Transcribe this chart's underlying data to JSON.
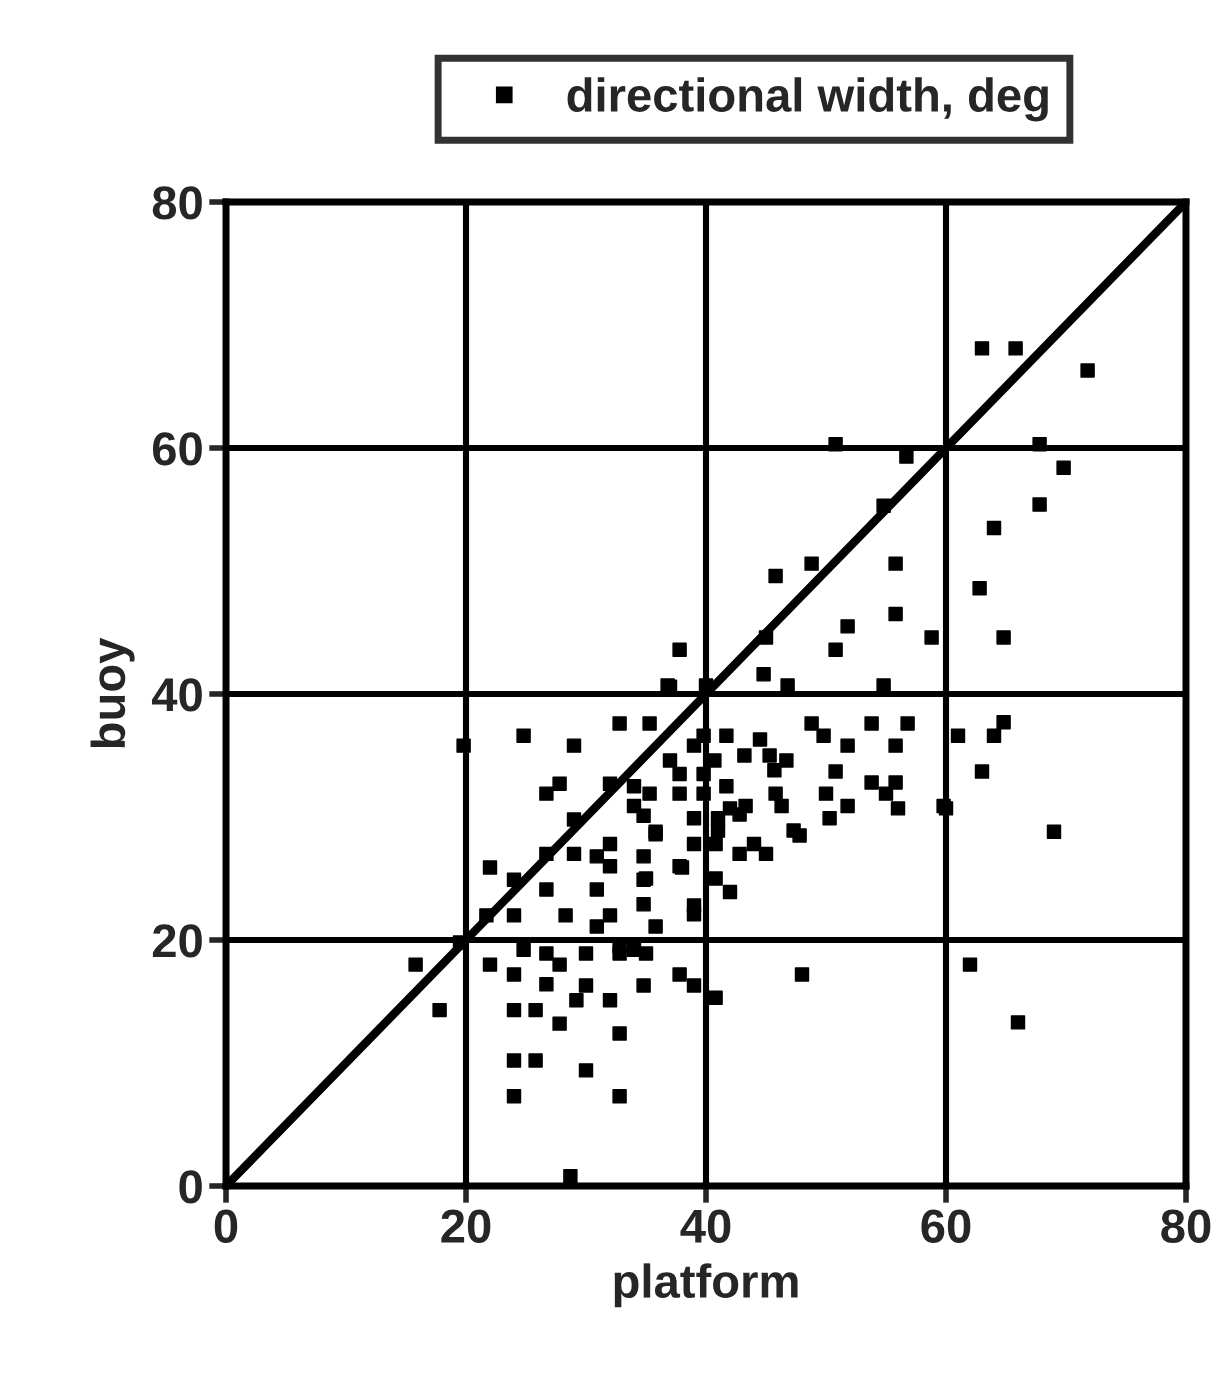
{
  "chart_data": {
    "type": "scatter",
    "xlabel": "platform",
    "ylabel": "buoy",
    "xlim": [
      0,
      80
    ],
    "ylim": [
      0,
      80
    ],
    "xticks": [
      0,
      20,
      40,
      60,
      80
    ],
    "yticks": [
      0,
      20,
      40,
      60,
      80
    ],
    "grid": true,
    "legend": "top",
    "series": [
      {
        "name": "directional width, deg",
        "color": "#000000",
        "marker": "square",
        "x": [
          63,
          65.8,
          71.8,
          67.8,
          69.8,
          50.8,
          56.7,
          54.8,
          67.8,
          64,
          62.8,
          55.8,
          48.8,
          45.8,
          64.8,
          58.8,
          55.8,
          51.8,
          50.8,
          37.8,
          45,
          44.8,
          46.8,
          54.8,
          36.8,
          40,
          24.8,
          29,
          32.8,
          35.3,
          37,
          26.7,
          27.8,
          32,
          29,
          32,
          26.7,
          29,
          30.9,
          32,
          22,
          24,
          26.7,
          30.9,
          34.8,
          34.8,
          34.8,
          37.8,
          28.3,
          24,
          32,
          30.9,
          35.8,
          15.8,
          17.8,
          22,
          24,
          24.8,
          26.7,
          27.8,
          26.7,
          30,
          30,
          29.2,
          32,
          32.8,
          35,
          24,
          25.8,
          27.8,
          32.8,
          24,
          25.8,
          30,
          24,
          32.8,
          37.8,
          39,
          34.8,
          28.7,
          19.8,
          35.8,
          48.8,
          53.8,
          56.8,
          61,
          64,
          49.8,
          41.7,
          44.5,
          39.8,
          51.8,
          55.8,
          39,
          45.3,
          43.2,
          46.7,
          40.7,
          37,
          63,
          50.8,
          45.7,
          39.8,
          37.8,
          53.8,
          55.8,
          41.7,
          34,
          50,
          39.8,
          37.8,
          45.8,
          35.3,
          55,
          43.3,
          46.3,
          56,
          51.8,
          60,
          42,
          34,
          50.3,
          39,
          41,
          42.8,
          34.8,
          35.8,
          41,
          47.3,
          47.8,
          39,
          40.8,
          44,
          42.8,
          45,
          38,
          35,
          40.8,
          42,
          39,
          39,
          32.8,
          34,
          48,
          40.8,
          64.8,
          69,
          59.8,
          62,
          66,
          21.7,
          19.5
        ],
        "values": [
          68.1,
          68.1,
          66.3,
          60.3,
          58.4,
          60.3,
          59.3,
          55.3,
          55.4,
          53.5,
          48.6,
          50.6,
          50.6,
          49.6,
          44.6,
          44.6,
          46.5,
          45.5,
          43.6,
          43.6,
          44.6,
          41.6,
          40.7,
          40.7,
          40.7,
          40.7,
          36.6,
          35.8,
          37.6,
          37.6,
          40.6,
          31.9,
          32.7,
          32.7,
          29.8,
          27.8,
          27,
          27,
          26.8,
          26,
          25.9,
          24.9,
          24.1,
          24.1,
          26.8,
          24.9,
          22.9,
          26,
          22,
          22,
          22,
          21.1,
          21.1,
          18,
          14.3,
          18,
          17.2,
          19.2,
          18.9,
          18,
          16.4,
          18.9,
          16.3,
          15.1,
          15.1,
          18.9,
          18.9,
          14.3,
          14.3,
          13.2,
          12.4,
          10.2,
          10.2,
          9.4,
          7.3,
          7.3,
          17.2,
          16.3,
          16.3,
          0.8,
          35.8,
          28.6,
          37.6,
          37.6,
          37.6,
          36.6,
          36.6,
          36.6,
          36.6,
          36.3,
          36.6,
          35.8,
          35.8,
          35.8,
          35,
          35,
          34.6,
          34.6,
          34.6,
          33.7,
          33.7,
          33.8,
          33.5,
          33.5,
          32.8,
          32.8,
          32.5,
          32.5,
          31.9,
          31.9,
          31.9,
          31.9,
          31.9,
          31.9,
          30.9,
          30.9,
          30.7,
          30.9,
          30.7,
          30.7,
          30.9,
          29.9,
          29.9,
          29.9,
          30.2,
          30.1,
          28.8,
          28.9,
          28.9,
          28.5,
          27.8,
          27.8,
          27.8,
          27,
          27,
          25.9,
          25,
          25,
          23.9,
          22.8,
          22.1,
          19.5,
          19.2,
          17.2,
          15.3,
          37.7,
          28.8,
          30.9,
          18,
          13.3,
          22,
          19.8
        ]
      },
      {
        "type": "line",
        "color": "#000000",
        "marker": "none",
        "x": [
          0,
          80
        ],
        "values": [
          0,
          80
        ]
      }
    ]
  }
}
